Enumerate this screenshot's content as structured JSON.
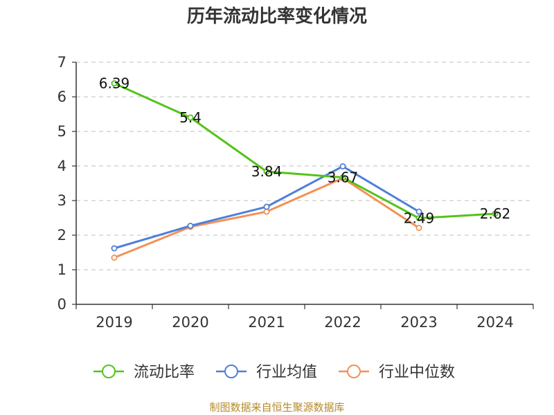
{
  "chart_data": {
    "type": "line",
    "title": "历年流动比率变化情况",
    "categories": [
      "2019",
      "2020",
      "2021",
      "2022",
      "2023",
      "2024"
    ],
    "ylim": [
      0,
      7
    ],
    "yticks": [
      "0",
      "1",
      "2",
      "3",
      "4",
      "5",
      "6",
      "7"
    ],
    "grid": true,
    "legend_position": "bottom",
    "series": [
      {
        "name": "流动比率",
        "color": "#52c41a",
        "values": [
          6.39,
          5.4,
          3.84,
          3.67,
          2.49,
          2.62
        ],
        "labels": [
          "6.39",
          "5.4",
          "3.84",
          "3.67",
          "2.49",
          "2.62"
        ]
      },
      {
        "name": "行业均值",
        "color": "#4e7fdb",
        "values": [
          1.62,
          2.27,
          2.82,
          3.99,
          2.68,
          null
        ]
      },
      {
        "name": "行业中位数",
        "color": "#f39056",
        "values": [
          1.35,
          2.24,
          2.68,
          3.65,
          2.21,
          null
        ]
      }
    ]
  },
  "source_text": "制图数据来自恒生聚源数据库"
}
